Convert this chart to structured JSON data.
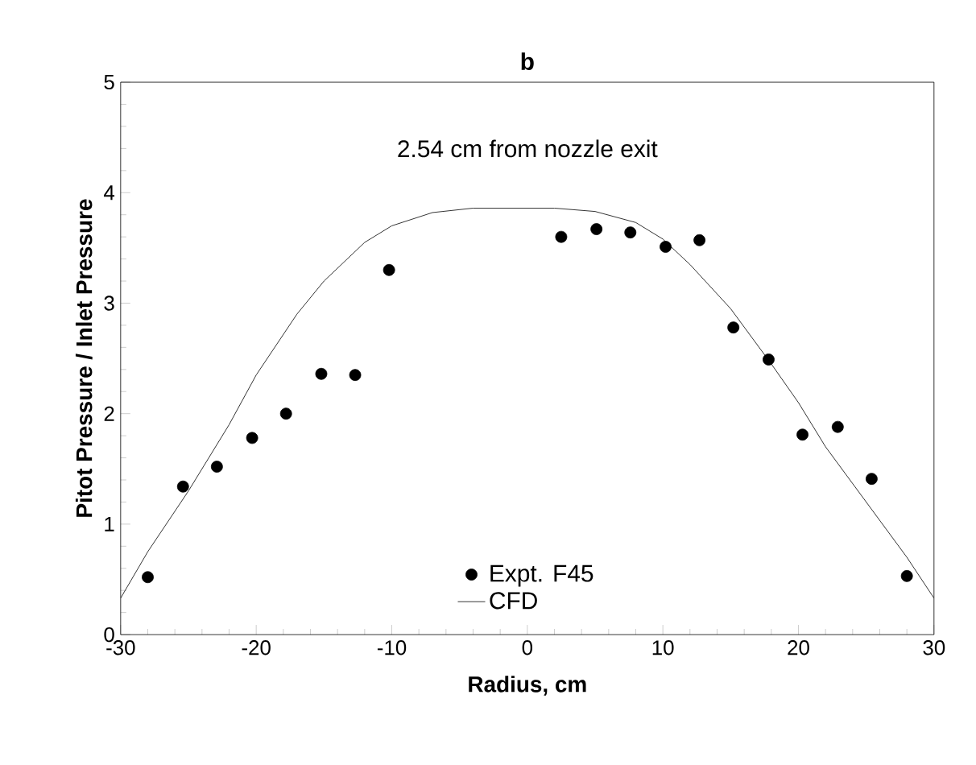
{
  "chart_data": {
    "type": "scatter",
    "title": "b",
    "xlabel": "Radius, cm",
    "ylabel": "Pitot Pressure / Inlet Pressure",
    "annotations": [
      "2.54 cm from nozzle exit"
    ],
    "xlim": [
      -30,
      30
    ],
    "xticks": [
      -30,
      -20,
      -10,
      0,
      10,
      20,
      30
    ],
    "ylim": [
      0,
      5
    ],
    "yticks": [
      0,
      1,
      2,
      3,
      4,
      5
    ],
    "grid": false,
    "legend": "bottom",
    "series": [
      {
        "name": "Expt. F45",
        "marker": "circle",
        "color": "#000000",
        "x": [
          -28,
          -25.4,
          -22.9,
          -20.3,
          -17.8,
          -15.2,
          -12.7,
          -10.2,
          2.5,
          5.1,
          7.6,
          10.2,
          12.7,
          15.2,
          17.8,
          20.3,
          22.9,
          25.4,
          28
        ],
        "values": [
          0.52,
          1.34,
          1.52,
          1.78,
          2.0,
          2.36,
          2.35,
          3.3,
          3.6,
          3.67,
          3.64,
          3.51,
          3.57,
          2.78,
          2.49,
          1.81,
          1.88,
          1.41,
          0.53
        ]
      },
      {
        "name": "CFD",
        "type": "line",
        "marker": "none",
        "line_style": "solid",
        "color": "#000000",
        "x": [
          -30,
          -28,
          -25,
          -22,
          -20,
          -17,
          -15,
          -12,
          -10,
          -7,
          -4,
          0,
          2,
          5,
          8,
          10,
          12,
          15,
          18,
          20,
          22,
          25,
          28,
          30
        ],
        "values": [
          0.33,
          0.75,
          1.3,
          1.9,
          2.35,
          2.9,
          3.2,
          3.55,
          3.7,
          3.82,
          3.86,
          3.86,
          3.86,
          3.83,
          3.73,
          3.58,
          3.35,
          2.95,
          2.45,
          2.1,
          1.7,
          1.2,
          0.7,
          0.33
        ]
      }
    ]
  }
}
